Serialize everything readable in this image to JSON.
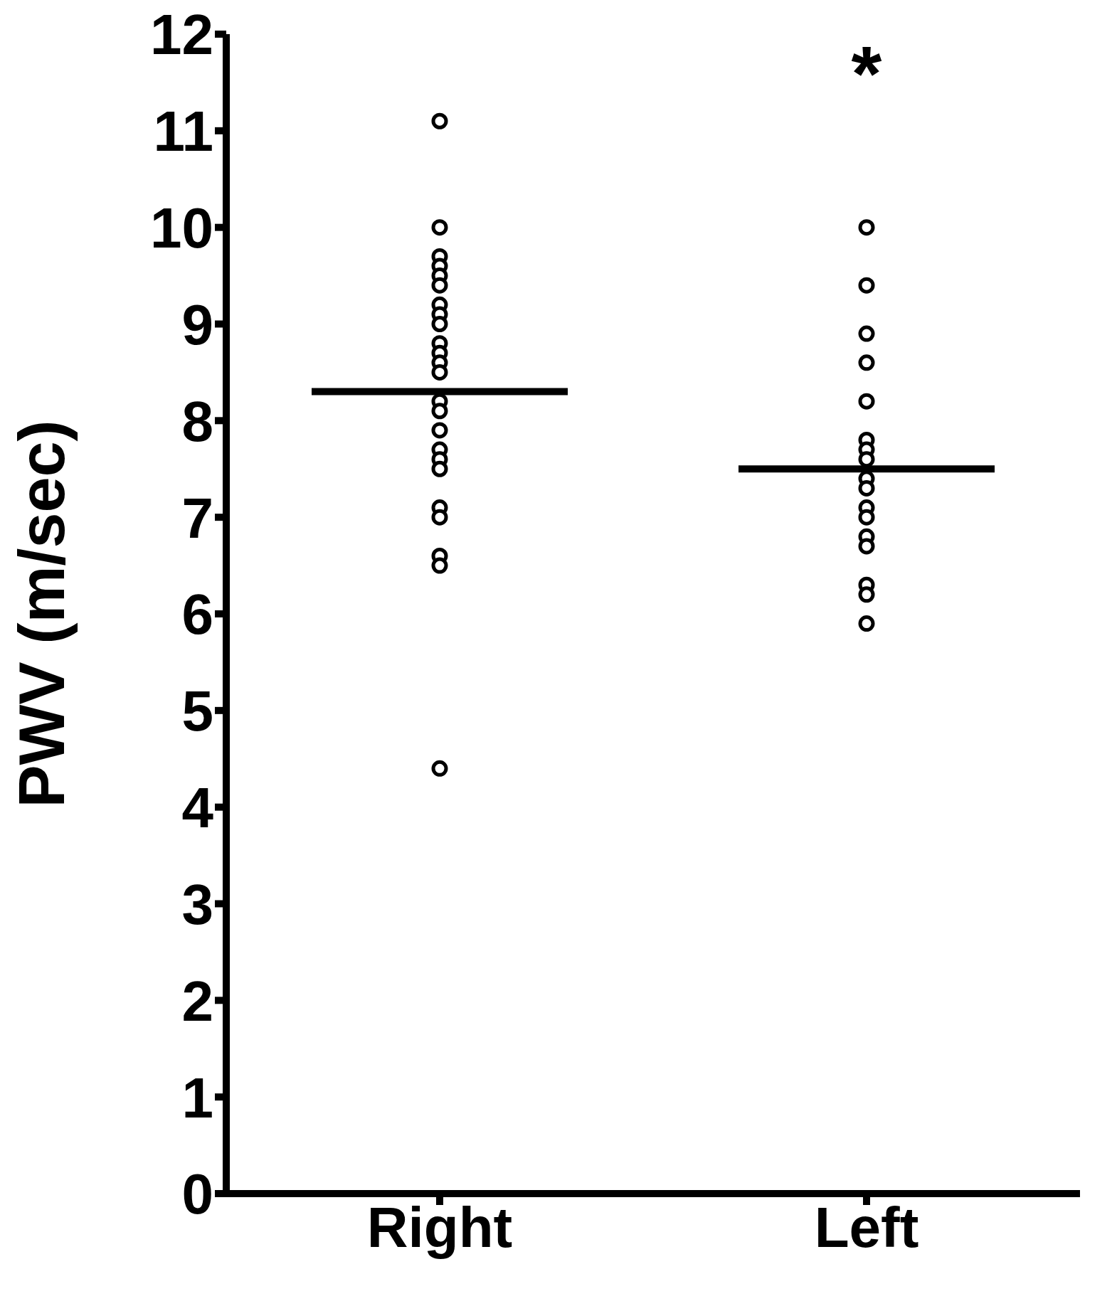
{
  "chart_data": {
    "type": "scatter",
    "ylabel": "PWV (m/sec)",
    "categories": [
      "Right",
      "Left"
    ],
    "ylim": [
      0,
      12
    ],
    "yticks": [
      0,
      1,
      2,
      3,
      4,
      5,
      6,
      7,
      8,
      9,
      10,
      11,
      12
    ],
    "marker": "circle",
    "annotations": [
      "*"
    ],
    "series": [
      {
        "color": "#000000",
        "x": [
          "Right",
          "Right",
          "Right",
          "Right",
          "Right",
          "Right",
          "Right",
          "Right",
          "Right",
          "Right",
          "Right",
          "Right",
          "Right",
          "Right",
          "Right",
          "Right",
          "Right",
          "Right",
          "Right",
          "Right",
          "Right",
          "Right",
          "Right",
          "Right",
          "Left",
          "Left",
          "Left",
          "Left",
          "Left",
          "Left",
          "Left",
          "Left",
          "Left",
          "Left",
          "Left",
          "Left",
          "Left",
          "Left",
          "Left",
          "Left",
          "Left"
        ],
        "values": [
          11.1,
          10.0,
          9.7,
          9.6,
          9.5,
          9.4,
          9.2,
          9.1,
          9.0,
          8.8,
          8.7,
          8.6,
          8.5,
          8.2,
          8.1,
          7.9,
          7.7,
          7.6,
          7.5,
          7.1,
          7.0,
          6.6,
          6.5,
          4.4,
          10.0,
          9.4,
          8.9,
          8.6,
          8.2,
          7.8,
          7.7,
          7.6,
          7.4,
          7.3,
          7.1,
          7.0,
          6.8,
          6.7,
          6.3,
          6.2,
          5.9
        ]
      },
      {
        "type": "box",
        "color": "#000000",
        "boxes": [
          {
            "low": 8.3,
            "q1": 8.3,
            "median": 8.3,
            "q3": 8.3,
            "high": 8.3
          },
          {
            "low": 7.5,
            "q1": 7.5,
            "median": 7.5,
            "q3": 7.5,
            "high": 7.5
          }
        ]
      }
    ]
  }
}
